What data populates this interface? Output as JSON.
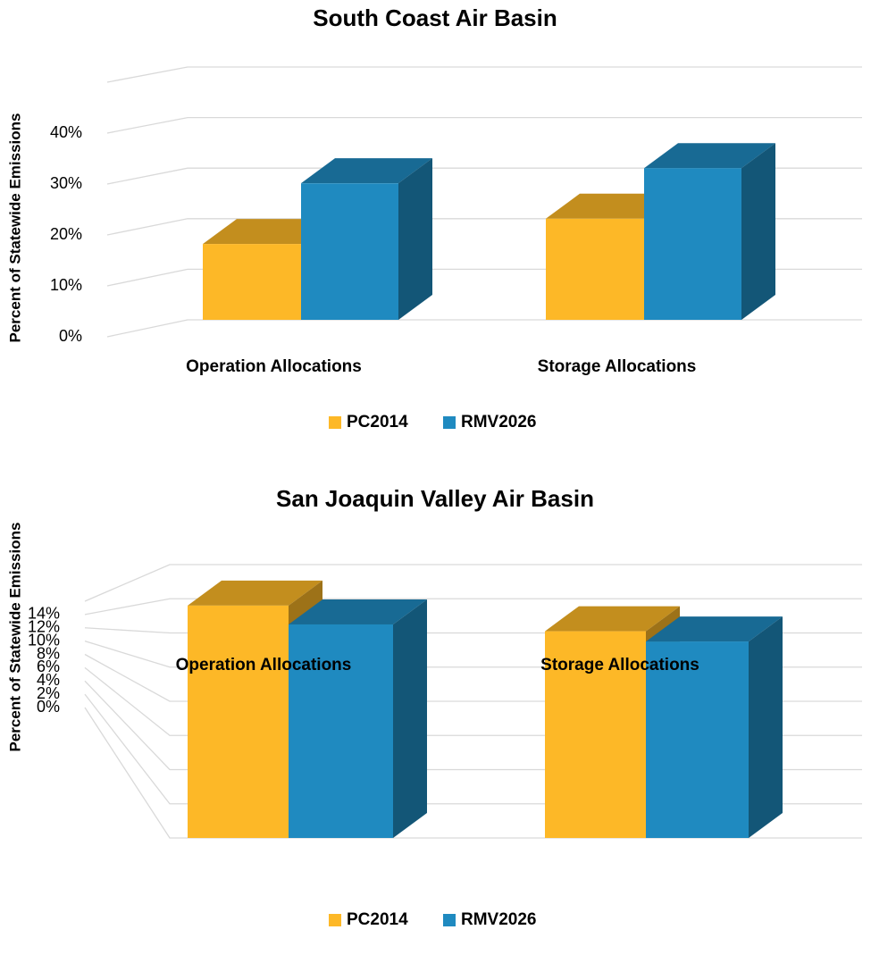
{
  "chart_data": [
    {
      "type": "bar3d",
      "title": "South Coast Air Basin",
      "y_label": "Percent of Statewide Emissions",
      "categories": [
        "Operation Allocations",
        "Storage Allocations"
      ],
      "series": [
        {
          "name": "PC2014",
          "color": "#FDB827",
          "values": [
            15,
            20
          ]
        },
        {
          "name": "RMV2026",
          "color": "#1F8AC0",
          "values": [
            27,
            30
          ]
        }
      ],
      "ylim": [
        0,
        50
      ],
      "yticks": [
        {
          "value": 0,
          "label": "0%"
        },
        {
          "value": 10,
          "label": "10%"
        },
        {
          "value": 20,
          "label": "20%"
        },
        {
          "value": 30,
          "label": "30%"
        },
        {
          "value": 40,
          "label": "40%"
        }
      ],
      "grid": true,
      "legend": "bottom"
    },
    {
      "type": "bar3d",
      "title": "San Joaquin Valley Air Basin",
      "y_label": "Percent of Statewide Emissions",
      "categories": [
        "Operation Allocations",
        "Storage Allocations"
      ],
      "series": [
        {
          "name": "PC2014",
          "color": "#FDB827",
          "values": [
            13.6,
            12.1
          ]
        },
        {
          "name": "RMV2026",
          "color": "#1F8AC0",
          "values": [
            12.5,
            11.5
          ]
        }
      ],
      "ylim": [
        0,
        16
      ],
      "yticks": [
        {
          "value": 0,
          "label": "0%"
        },
        {
          "value": 2,
          "label": "2%"
        },
        {
          "value": 4,
          "label": "4%"
        },
        {
          "value": 6,
          "label": "6%"
        },
        {
          "value": 8,
          "label": "8%"
        },
        {
          "value": 10,
          "label": "10%"
        },
        {
          "value": 12,
          "label": "12%"
        },
        {
          "value": 14,
          "label": "14%"
        }
      ],
      "grid": true,
      "legend": "bottom"
    }
  ]
}
